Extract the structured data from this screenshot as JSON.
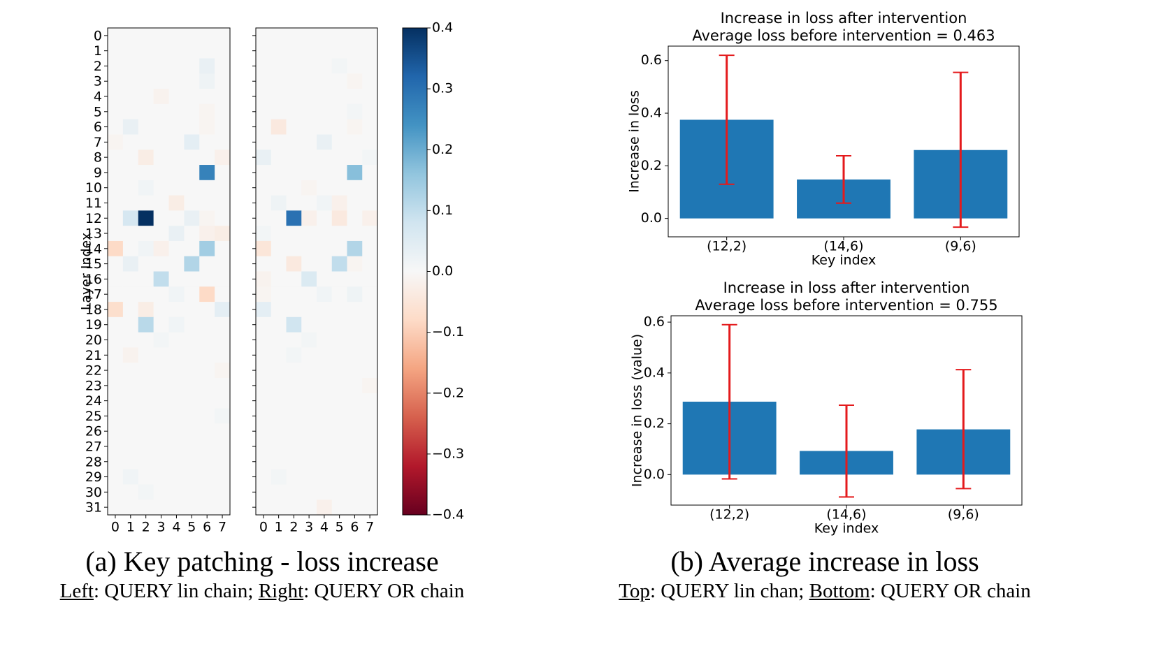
{
  "chart_data": [
    {
      "type": "heatmap",
      "panel": "left",
      "ylabel": "Layer Index",
      "yticks": [
        "0",
        "1",
        "2",
        "3",
        "4",
        "5",
        "6",
        "7",
        "8",
        "9",
        "10",
        "11",
        "12",
        "13",
        "14",
        "15",
        "16",
        "17",
        "18",
        "19",
        "20",
        "21",
        "22",
        "23",
        "24",
        "25",
        "26",
        "27",
        "28",
        "29",
        "30",
        "31"
      ],
      "xticks": [
        "0",
        "1",
        "2",
        "3",
        "4",
        "5",
        "6",
        "7"
      ],
      "vmin": -0.4,
      "vmax": 0.4,
      "colormap": "RdBu",
      "values": [
        [
          0,
          0,
          0,
          0,
          0,
          0,
          0,
          0
        ],
        [
          0,
          0,
          0,
          0,
          0,
          0,
          0,
          0
        ],
        [
          0,
          0,
          0,
          0,
          0,
          0,
          0.03,
          0
        ],
        [
          0,
          0,
          0,
          0,
          0,
          0,
          0.02,
          0
        ],
        [
          0,
          0,
          0,
          -0.015,
          0,
          0,
          0,
          0
        ],
        [
          0,
          0,
          0,
          0,
          0,
          0,
          -0.01,
          0
        ],
        [
          0,
          0.03,
          0,
          0,
          0,
          0,
          -0.01,
          0
        ],
        [
          -0.01,
          0,
          0,
          0,
          0,
          0.04,
          0,
          0
        ],
        [
          0,
          0,
          -0.03,
          0,
          0,
          0,
          0,
          -0.02
        ],
        [
          0,
          0,
          0,
          0,
          0,
          0,
          0.27,
          0
        ],
        [
          0,
          0,
          0.015,
          0,
          0,
          0,
          0,
          0
        ],
        [
          0,
          0,
          0,
          0,
          -0.03,
          0,
          0,
          0
        ],
        [
          0,
          0.07,
          0.4,
          0,
          0,
          0.03,
          -0.01,
          0
        ],
        [
          0,
          0,
          0,
          0,
          0.03,
          0,
          -0.02,
          -0.03
        ],
        [
          -0.08,
          0,
          0.015,
          -0.02,
          0,
          0,
          0.14,
          0
        ],
        [
          0,
          0.03,
          0,
          0,
          0,
          0.12,
          0,
          0
        ],
        [
          0,
          0,
          0,
          0.1,
          0,
          0,
          0,
          0
        ],
        [
          0,
          0,
          0,
          0,
          0.015,
          0,
          -0.08,
          0
        ],
        [
          -0.07,
          0,
          -0.03,
          0,
          0,
          0,
          0,
          0.04
        ],
        [
          0,
          0,
          0.11,
          0,
          0.015,
          0,
          0,
          0
        ],
        [
          0,
          0,
          0,
          0.01,
          0,
          0,
          0,
          0
        ],
        [
          0,
          -0.015,
          0,
          0,
          0,
          0,
          0,
          0
        ],
        [
          0,
          0,
          0,
          0,
          0,
          0,
          0,
          -0.01
        ],
        [
          0,
          0,
          0,
          0,
          0,
          0,
          0,
          0
        ],
        [
          0,
          0,
          0,
          0,
          0,
          0,
          0,
          0
        ],
        [
          0,
          0,
          0,
          0,
          0,
          0,
          0,
          0.01
        ],
        [
          0,
          0,
          0,
          0,
          0,
          0,
          0,
          0
        ],
        [
          0,
          0,
          0,
          0,
          0,
          0,
          0,
          0
        ],
        [
          0,
          0,
          0,
          0,
          0,
          0,
          0,
          0
        ],
        [
          0,
          0.015,
          0,
          0,
          0,
          0,
          0,
          0
        ],
        [
          0,
          0,
          0.01,
          0,
          0,
          0,
          0,
          0
        ],
        [
          0,
          0,
          0,
          0,
          0,
          0,
          0,
          0
        ]
      ]
    },
    {
      "type": "heatmap",
      "panel": "right",
      "xticks": [
        "0",
        "1",
        "2",
        "3",
        "4",
        "5",
        "6",
        "7"
      ],
      "vmin": -0.4,
      "vmax": 0.4,
      "colormap": "RdBu",
      "values": [
        [
          0,
          0,
          0,
          0,
          0,
          0,
          0,
          0
        ],
        [
          0,
          0,
          0,
          0,
          0,
          0,
          0,
          0
        ],
        [
          0,
          0,
          0,
          0,
          0,
          0.01,
          0,
          0
        ],
        [
          0,
          0,
          0,
          0,
          0,
          0,
          -0.01,
          0
        ],
        [
          0,
          0,
          0,
          0,
          0,
          0,
          0,
          0
        ],
        [
          0,
          0,
          0,
          0,
          0,
          0,
          0.01,
          0
        ],
        [
          0,
          -0.04,
          0,
          0,
          0,
          0,
          -0.01,
          0
        ],
        [
          0,
          0,
          0,
          0,
          0.03,
          0,
          0,
          0
        ],
        [
          0.03,
          0,
          0,
          0,
          0,
          0,
          0,
          0.01
        ],
        [
          0,
          0,
          0,
          0,
          0,
          0,
          0.17,
          0
        ],
        [
          0,
          0,
          0,
          -0.01,
          0,
          0,
          0,
          0
        ],
        [
          0,
          0.02,
          0,
          0,
          0.015,
          -0.02,
          0,
          0
        ],
        [
          0,
          0,
          0.3,
          -0.02,
          0,
          -0.04,
          0,
          -0.02
        ],
        [
          0.01,
          0,
          0,
          0,
          0,
          0,
          0,
          0
        ],
        [
          -0.05,
          0,
          0,
          0,
          0,
          0,
          0.12,
          0
        ],
        [
          0,
          0,
          -0.04,
          0,
          0,
          0.1,
          -0.01,
          0
        ],
        [
          -0.015,
          0,
          0,
          0.06,
          0,
          0,
          0,
          0
        ],
        [
          -0.01,
          0,
          0,
          0,
          0.015,
          0,
          0.02,
          0
        ],
        [
          0.04,
          0,
          0,
          0,
          0,
          0,
          0,
          0
        ],
        [
          0,
          0,
          0.08,
          0,
          0,
          0,
          0,
          0
        ],
        [
          0,
          0,
          0,
          0.01,
          0,
          0,
          0,
          0
        ],
        [
          0,
          0,
          0.01,
          0,
          0,
          0,
          0,
          0
        ],
        [
          0,
          0,
          0,
          0,
          0,
          0,
          0,
          0
        ],
        [
          0,
          0,
          0,
          0,
          0,
          0,
          0,
          -0.01
        ],
        [
          0,
          0,
          0,
          0,
          0,
          0,
          0,
          0
        ],
        [
          0,
          0,
          0,
          0,
          0,
          0,
          0,
          0
        ],
        [
          0,
          0,
          0,
          0,
          0,
          0,
          0,
          0
        ],
        [
          0,
          0,
          0,
          0,
          0,
          0,
          0,
          0
        ],
        [
          0,
          0,
          0,
          0,
          0,
          0,
          0,
          0
        ],
        [
          0,
          0.01,
          0,
          0,
          0,
          0,
          0,
          0
        ],
        [
          0,
          0,
          0,
          0,
          0,
          0,
          0,
          0
        ],
        [
          0,
          0,
          0,
          0,
          -0.02,
          0,
          0,
          0
        ]
      ]
    },
    {
      "type": "colorbar",
      "range": [
        -0.4,
        0.4
      ],
      "ticks": [
        "0.4",
        "0.3",
        "0.2",
        "0.1",
        "0.0",
        "−0.1",
        "−0.2",
        "−0.3",
        "−0.4"
      ],
      "tick_values": [
        0.4,
        0.3,
        0.2,
        0.1,
        0.0,
        -0.1,
        -0.2,
        -0.3,
        -0.4
      ]
    },
    {
      "type": "bar",
      "panel": "top",
      "title": "Increase in loss after intervention",
      "subtitle": "Average loss before intervention = 0.463",
      "xlabel": "Key index",
      "ylabel": "Increase in loss",
      "categories": [
        "(12,2)",
        "(14,6)",
        "(9,6)"
      ],
      "values": [
        0.375,
        0.148,
        0.26
      ],
      "err_low": [
        0.13,
        0.058,
        -0.033
      ],
      "err_high": [
        0.62,
        0.238,
        0.555
      ],
      "yticks": [
        "0.0",
        "0.2",
        "0.4",
        "0.6"
      ],
      "ytick_values": [
        0.0,
        0.2,
        0.4,
        0.6
      ],
      "ylim": [
        -0.07,
        0.655
      ]
    },
    {
      "type": "bar",
      "panel": "bottom",
      "title": "Increase in loss after intervention",
      "subtitle": "Average loss before intervention = 0.755",
      "xlabel": "Key index",
      "ylabel": "Increase in loss (value)",
      "categories": [
        "(12,2)",
        "(14,6)",
        "(9,6)"
      ],
      "values": [
        0.287,
        0.093,
        0.178
      ],
      "err_low": [
        -0.017,
        -0.088,
        -0.055
      ],
      "err_high": [
        0.59,
        0.273,
        0.413
      ],
      "yticks": [
        "0.0",
        "0.2",
        "0.4",
        "0.6"
      ],
      "ytick_values": [
        0.0,
        0.2,
        0.4,
        0.6
      ],
      "ylim": [
        -0.12,
        0.625
      ]
    }
  ],
  "captions": {
    "a_main": "(a) Key patching - loss increase",
    "a_left_label": "Left",
    "a_left_text": ": QUERY lin chain; ",
    "a_right_label": "Right",
    "a_right_text": ": QUERY OR chain",
    "b_main": "(b) Average increase in loss",
    "b_top_label": "Top",
    "b_top_text": ": QUERY lin chan; ",
    "b_bottom_label": "Bottom",
    "b_bottom_text": ": QUERY OR chain"
  },
  "colors": {
    "bar": "#1f77b4",
    "errorbar": "#e41a1c",
    "axis": "#000000",
    "heatmap_low": "#67001f",
    "heatmap_mid": "#f7f7f7",
    "heatmap_high": "#053061"
  }
}
